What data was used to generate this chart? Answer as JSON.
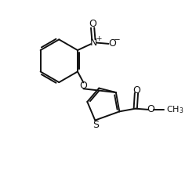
{
  "background": "#ffffff",
  "bond_color": "#111111",
  "bond_lw": 1.4,
  "text_color": "#111111",
  "font_size": 8.5,
  "figsize": [
    2.5,
    2.4
  ],
  "dpi": 100,
  "xlim": [
    0,
    10
  ],
  "ylim": [
    0,
    9.6
  ]
}
